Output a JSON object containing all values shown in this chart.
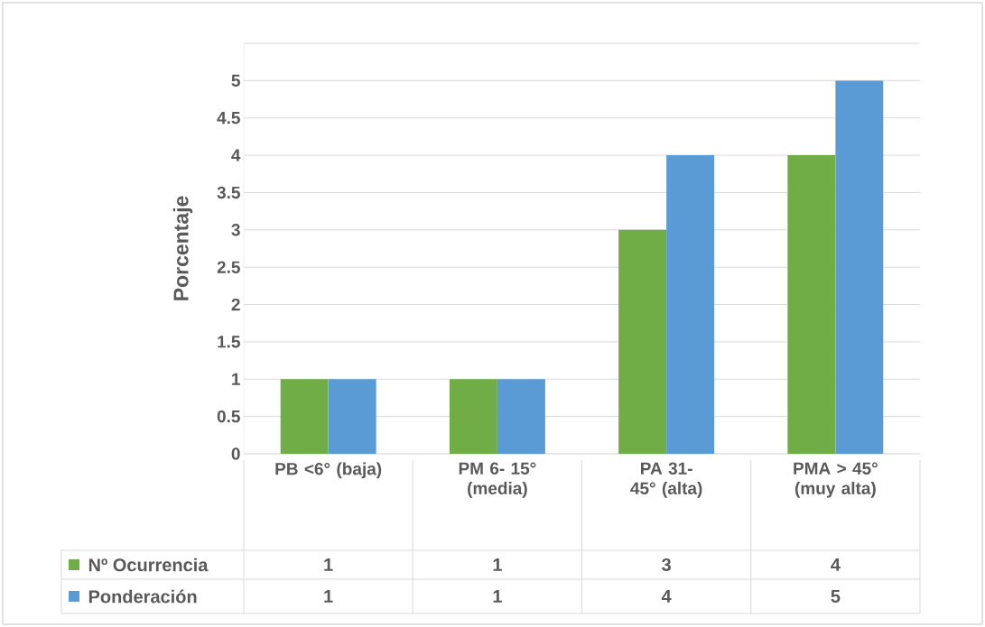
{
  "chart_data": {
    "type": "bar",
    "ylabel": "Porcentaje",
    "categories": [
      "PB <6° (baja)",
      "PM 6- 15° (media)",
      "PA 31- 45° (alta)",
      "PMA > 45° (muy alta)"
    ],
    "series": [
      {
        "name": "Nº Ocurrencia",
        "color": "#70ad47",
        "values": [
          1,
          1,
          3,
          4
        ],
        "value_labels": [
          "1",
          "1",
          "3",
          "4"
        ]
      },
      {
        "name": "Ponderación",
        "color": "#5b9bd5",
        "values": [
          1,
          1,
          4,
          5
        ],
        "value_labels": [
          "1",
          "1",
          "4",
          "5"
        ]
      }
    ],
    "ylim": [
      0,
      5.5
    ],
    "yticks": [
      0,
      0.5,
      1,
      1.5,
      2,
      2.5,
      3,
      3.5,
      4,
      4.5,
      5,
      {
        "value": 5.5,
        "label": null
      }
    ],
    "grid": "y",
    "legend": "bottom"
  }
}
